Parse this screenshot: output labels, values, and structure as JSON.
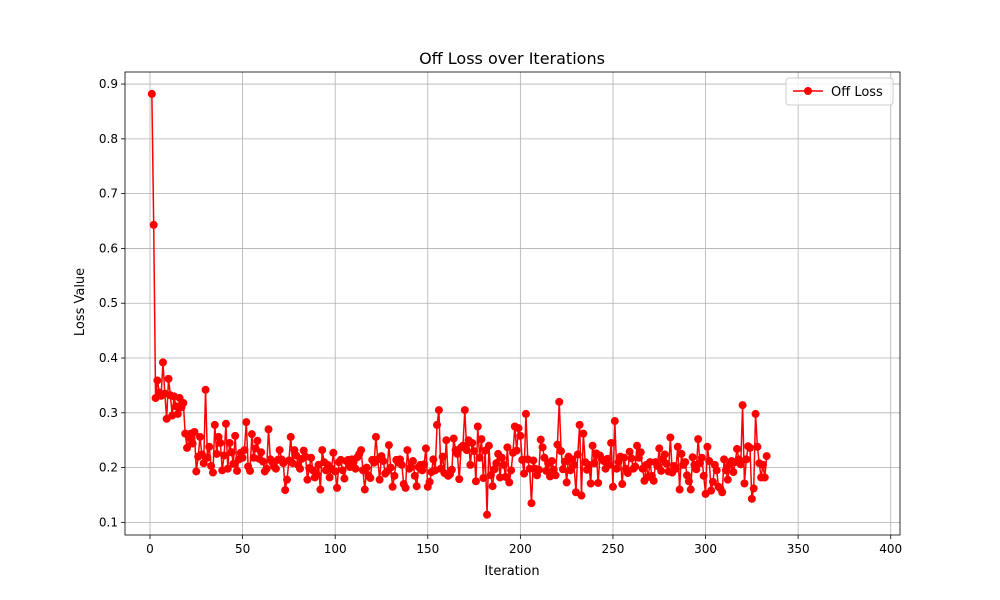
{
  "chart_data": {
    "type": "line",
    "title": "Off Loss over Iterations",
    "xlabel": "Iteration",
    "ylabel": "Loss Value",
    "xlim": [
      -13.5,
      405
    ],
    "ylim": [
      0.077,
      0.922
    ],
    "xticks": [
      0,
      50,
      100,
      150,
      200,
      250,
      300,
      350,
      400
    ],
    "yticks": [
      0.1,
      0.2,
      0.3,
      0.4,
      0.5,
      0.6,
      0.7,
      0.8,
      0.9
    ],
    "grid": true,
    "legend": {
      "position": "top-right"
    },
    "series": [
      {
        "name": "Off Loss",
        "color": "#ff0000",
        "marker": "circle",
        "x_start": 1,
        "values": [
          0.882,
          0.643,
          0.327,
          0.359,
          0.337,
          0.331,
          0.392,
          0.335,
          0.289,
          0.362,
          0.332,
          0.295,
          0.33,
          0.312,
          0.298,
          0.327,
          0.31,
          0.318,
          0.262,
          0.236,
          0.255,
          0.262,
          0.244,
          0.265,
          0.193,
          0.22,
          0.256,
          0.224,
          0.208,
          0.342,
          0.218,
          0.238,
          0.203,
          0.191,
          0.278,
          0.225,
          0.256,
          0.245,
          0.195,
          0.222,
          0.28,
          0.198,
          0.245,
          0.228,
          0.207,
          0.258,
          0.194,
          0.215,
          0.227,
          0.218,
          0.232,
          0.283,
          0.202,
          0.194,
          0.261,
          0.218,
          0.235,
          0.249,
          0.216,
          0.228,
          0.211,
          0.193,
          0.198,
          0.27,
          0.215,
          0.21,
          0.202,
          0.198,
          0.214,
          0.232,
          0.215,
          0.208,
          0.159,
          0.178,
          0.213,
          0.256,
          0.208,
          0.232,
          0.222,
          0.205,
          0.198,
          0.216,
          0.231,
          0.22,
          0.178,
          0.199,
          0.218,
          0.195,
          0.182,
          0.188,
          0.205,
          0.16,
          0.232,
          0.21,
          0.195,
          0.205,
          0.182,
          0.198,
          0.227,
          0.193,
          0.163,
          0.21,
          0.214,
          0.195,
          0.18,
          0.212,
          0.214,
          0.201,
          0.215,
          0.212,
          0.198,
          0.219,
          0.225,
          0.232,
          0.195,
          0.16,
          0.2,
          0.186,
          0.181,
          0.214,
          0.209,
          0.256,
          0.215,
          0.178,
          0.221,
          0.212,
          0.189,
          0.193,
          0.241,
          0.2,
          0.165,
          0.185,
          0.214,
          0.209,
          0.215,
          0.205,
          0.17,
          0.163,
          0.232,
          0.198,
          0.201,
          0.212,
          0.185,
          0.166,
          0.201,
          0.205,
          0.195,
          0.206,
          0.235,
          0.165,
          0.174,
          0.192,
          0.215,
          0.195,
          0.278,
          0.305,
          0.198,
          0.22,
          0.19,
          0.25,
          0.185,
          0.188,
          0.196,
          0.253,
          0.232,
          0.225,
          0.179,
          0.237,
          0.24,
          0.305,
          0.232,
          0.25,
          0.205,
          0.245,
          0.23,
          0.175,
          0.275,
          0.218,
          0.252,
          0.181,
          0.231,
          0.114,
          0.24,
          0.186,
          0.166,
          0.197,
          0.208,
          0.225,
          0.182,
          0.218,
          0.205,
          0.183,
          0.237,
          0.173,
          0.195,
          0.227,
          0.275,
          0.231,
          0.272,
          0.258,
          0.214,
          0.189,
          0.298,
          0.215,
          0.198,
          0.135,
          0.213,
          0.198,
          0.186,
          0.196,
          0.251,
          0.237,
          0.218,
          0.194,
          0.208,
          0.184,
          0.212,
          0.196,
          0.186,
          0.242,
          0.32,
          0.23,
          0.197,
          0.211,
          0.173,
          0.22,
          0.195,
          0.215,
          0.205,
          0.155,
          0.224,
          0.278,
          0.149,
          0.262,
          0.21,
          0.196,
          0.205,
          0.171,
          0.24,
          0.208,
          0.226,
          0.172,
          0.222,
          0.215,
          0.212,
          0.198,
          0.216,
          0.205,
          0.245,
          0.165,
          0.285,
          0.198,
          0.21,
          0.22,
          0.17,
          0.218,
          0.198,
          0.19,
          0.229,
          0.217,
          0.198,
          0.202,
          0.24,
          0.218,
          0.228,
          0.198,
          0.176,
          0.205,
          0.183,
          0.21,
          0.185,
          0.176,
          0.21,
          0.203,
          0.235,
          0.194,
          0.215,
          0.224,
          0.207,
          0.193,
          0.255,
          0.191,
          0.203,
          0.198,
          0.238,
          0.16,
          0.225,
          0.205,
          0.21,
          0.186,
          0.175,
          0.16,
          0.219,
          0.205,
          0.197,
          0.252,
          0.208,
          0.218,
          0.185,
          0.152,
          0.238,
          0.212,
          0.158,
          0.174,
          0.205,
          0.195,
          0.165,
          0.162,
          0.155,
          0.215,
          0.195,
          0.178,
          0.205,
          0.212,
          0.192,
          0.21,
          0.234,
          0.215,
          0.206,
          0.314,
          0.171,
          0.215,
          0.239,
          0.236,
          0.143,
          0.162,
          0.298,
          0.238,
          0.208,
          0.182,
          0.205,
          0.182,
          0.221
        ]
      }
    ]
  }
}
